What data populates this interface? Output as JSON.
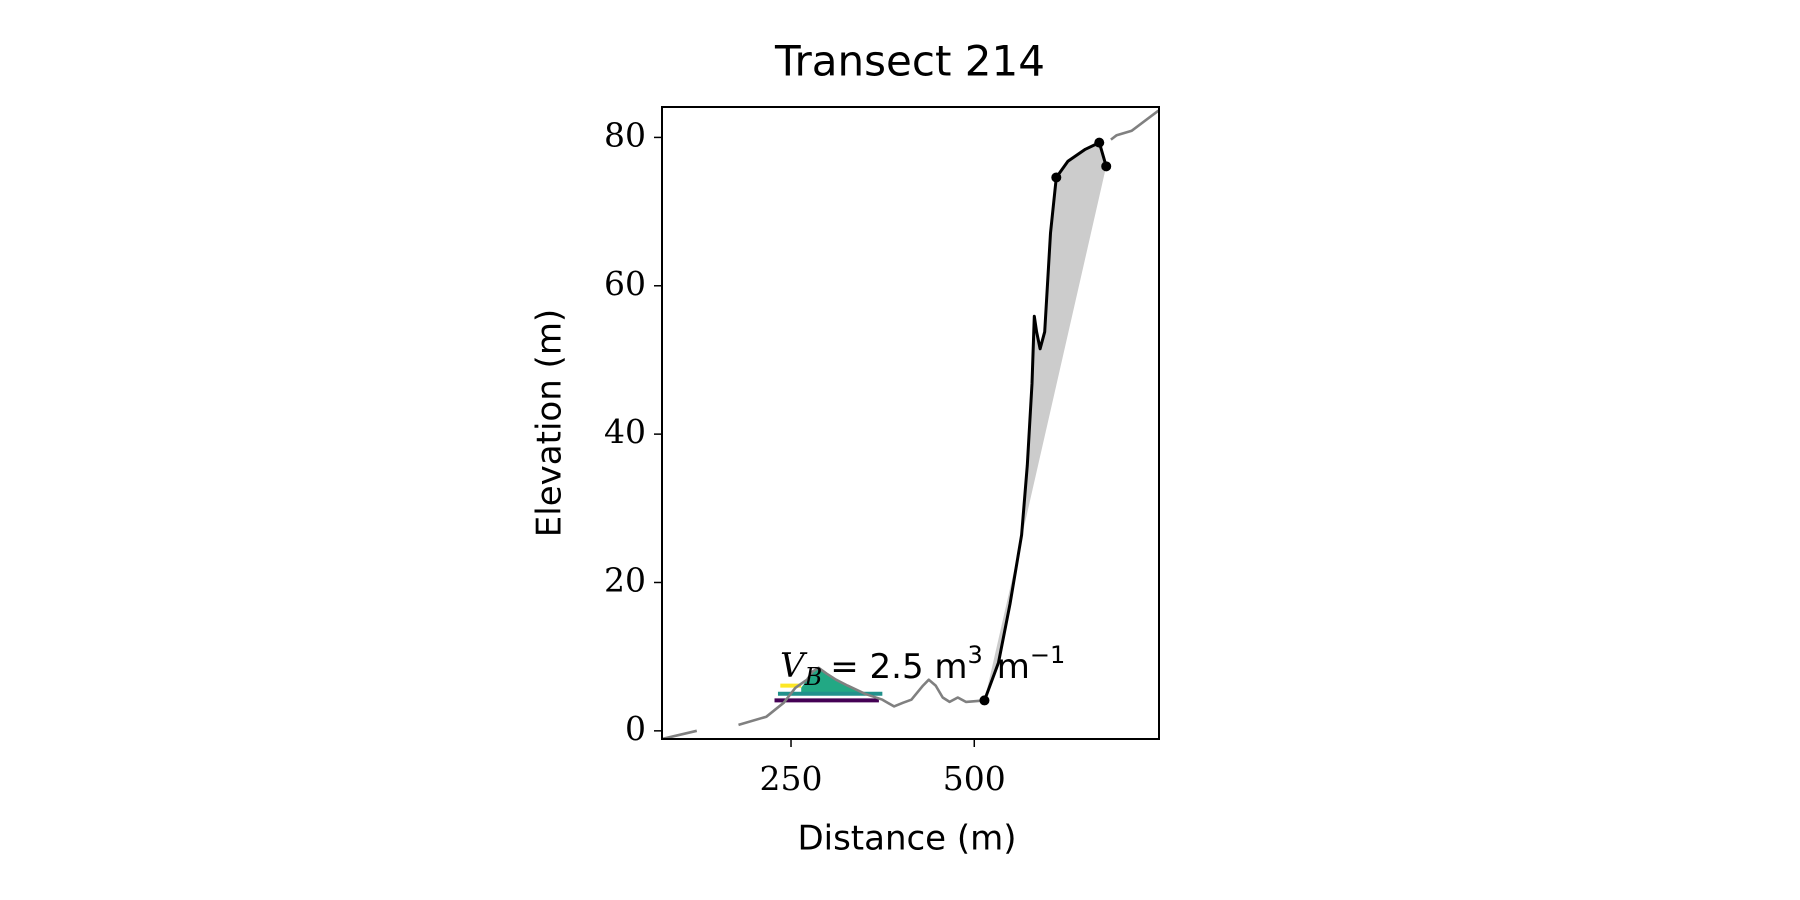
{
  "chart_data": {
    "type": "line",
    "title": "Transect 214",
    "x_label": "Distance (m)",
    "y_label": "Elevation (m)",
    "xlim": [
      74,
      752
    ],
    "ylim": [
      -1.1,
      84.1
    ],
    "xticks": [
      250,
      500
    ],
    "yticks": [
      0,
      20,
      40,
      60,
      80
    ],
    "grid": false,
    "series": [
      {
        "name": "profile",
        "color": "#808080",
        "x": [
          74,
          121.5,
          null,
          178.4,
          216.4,
          240.1,
          256,
          271.8,
          279.7,
          287.6,
          298.7,
          311.3,
          327.2,
          350.9,
          374.6,
          390.5,
          403.1,
          414.2,
          430,
          437.9,
          447.4,
          456.9,
          466.4,
          477.5,
          488.6,
          513.9,
          null,
          686.4,
          694.3,
          714.9,
          751.2
        ],
        "values": [
          -1.1,
          0,
          null,
          0.8,
          1.9,
          3.8,
          5.8,
          6.9,
          8.0,
          8.5,
          7.7,
          6.9,
          6.1,
          5.0,
          4.2,
          3.3,
          3.8,
          4.2,
          6.1,
          6.9,
          6.1,
          4.5,
          3.9,
          4.5,
          3.9,
          4.1,
          null,
          79.7,
          80.3,
          80.9,
          83.6
        ]
      },
      {
        "name": "cliff",
        "color": "#000000",
        "fill": "#cccccc",
        "x": [
          513.9,
          533,
          548.7,
          564.5,
          572.4,
          578.7,
          581.9,
          585,
          589.8,
          596.1,
          604,
          611.9,
          627.7,
          651.4,
          670.5,
          680
        ],
        "values": [
          4.1,
          9.2,
          17.1,
          26.4,
          35.8,
          46.8,
          55.9,
          53.8,
          51.5,
          53.8,
          67.1,
          74.6,
          76.8,
          78.4,
          79.3,
          76.1
        ]
      }
    ],
    "points": {
      "color": "#000000",
      "x": [
        513.9,
        611.9,
        670.5,
        680
      ],
      "values": [
        4.1,
        74.6,
        79.3,
        76.1
      ]
    },
    "fill_area": {
      "color": "#22a884",
      "x": [
        263.9,
        271.8,
        279.7,
        287.6,
        298.7,
        311.3,
        327.2,
        350.9,
        369.9
      ],
      "values": [
        5.8,
        6.9,
        8.0,
        8.5,
        7.7,
        6.9,
        6.1,
        5.0,
        5.0
      ],
      "base": 5.0
    },
    "levels": [
      {
        "color": "#fde725",
        "x": [
          235.4,
          263.9
        ],
        "value": 6.1
      },
      {
        "color": "#21918c",
        "x": [
          232.2,
          374.6
        ],
        "value": 5.0
      },
      {
        "color": "#440154",
        "x": [
          227.5,
          369.9
        ],
        "value": 4.1
      }
    ],
    "annotation": {
      "symbol": "V",
      "subscript": "B",
      "text": "= 2.5 m",
      "superscript": "3",
      "unit": "m",
      "unit_superscript": "−1"
    }
  }
}
